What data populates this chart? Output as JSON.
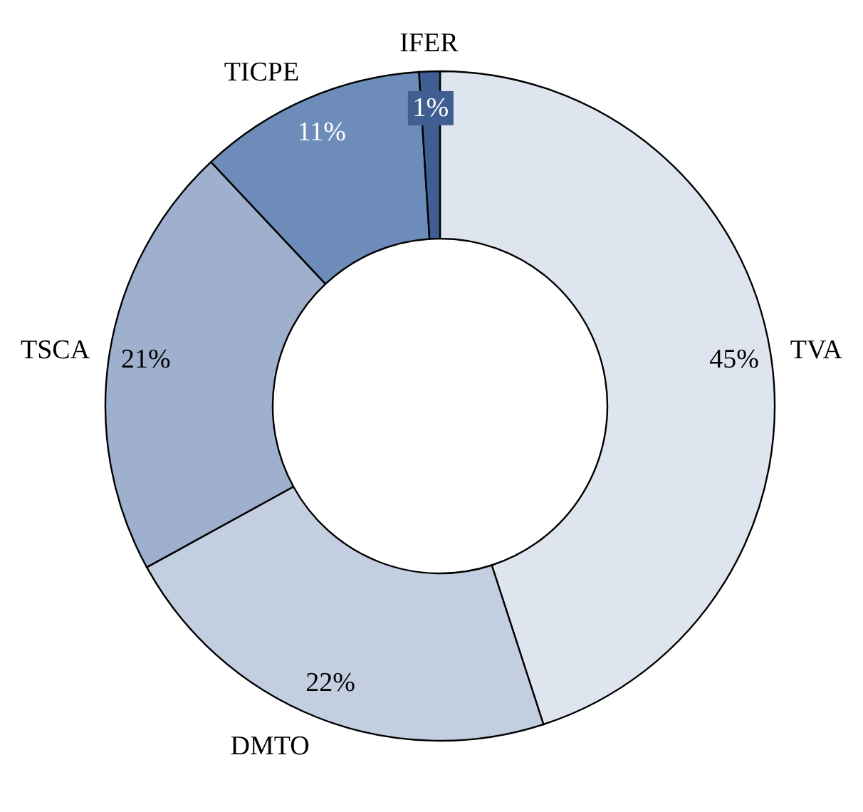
{
  "chart_data": {
    "type": "donut",
    "categories": [
      "TVA",
      "DMTO",
      "TSCA",
      "TICPE",
      "IFER"
    ],
    "values": [
      45,
      22,
      21,
      11,
      1
    ],
    "colors": [
      "#dfe5ef",
      "#c3cee1",
      "#9eb0ce",
      "#6d8cb9",
      "#3f5f93"
    ],
    "value_labels": [
      "45%",
      "22%",
      "21%",
      "11%",
      "1%"
    ]
  }
}
